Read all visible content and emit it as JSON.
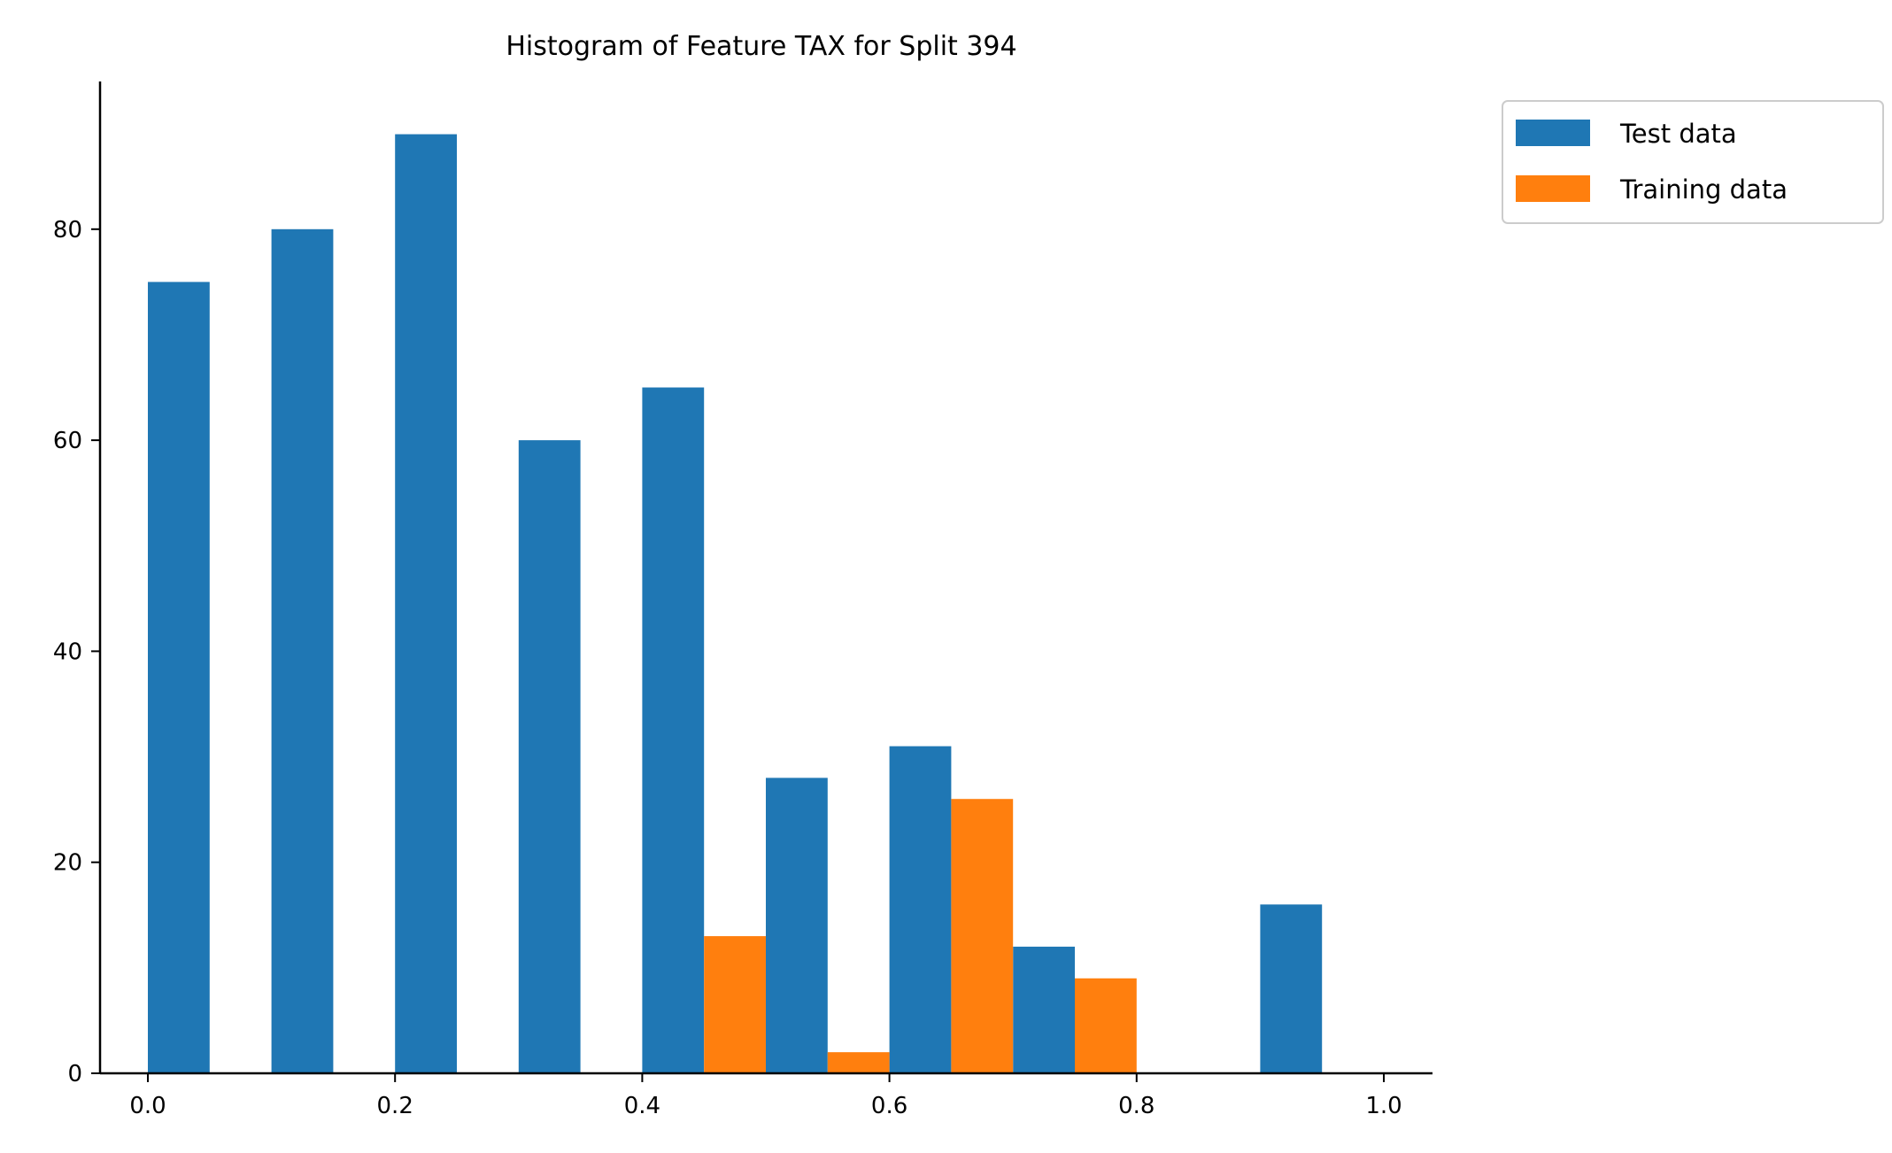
{
  "chart_data": {
    "type": "bar",
    "title": "Histogram of Feature TAX for Split 394",
    "xlabel": "",
    "ylabel": "",
    "xlim": [
      -0.05,
      1.04
    ],
    "ylim": [
      0,
      94
    ],
    "grid": false,
    "legend_position": "top-right, outside plot",
    "bin_width": 0.1,
    "bin_edges": [
      0.0,
      0.1,
      0.2,
      0.3,
      0.4,
      0.5,
      0.6,
      0.7,
      0.8,
      0.9,
      1.0
    ],
    "x_ticks": [
      0.0,
      0.2,
      0.4,
      0.6,
      0.8,
      1.0
    ],
    "x_tick_labels": [
      "0.0",
      "0.2",
      "0.4",
      "0.6",
      "0.8",
      "1.0"
    ],
    "y_ticks": [
      0,
      20,
      40,
      60,
      80
    ],
    "y_tick_labels": [
      "0",
      "20",
      "40",
      "60",
      "80"
    ],
    "series": [
      {
        "name": "Test data",
        "color": "#1f77b4",
        "values": [
          75,
          80,
          89,
          60,
          65,
          28,
          31,
          12,
          0,
          16
        ]
      },
      {
        "name": "Training data",
        "color": "#ff7f0e",
        "values": [
          0,
          0,
          0,
          0,
          13,
          2,
          26,
          9,
          0,
          0
        ]
      }
    ]
  }
}
